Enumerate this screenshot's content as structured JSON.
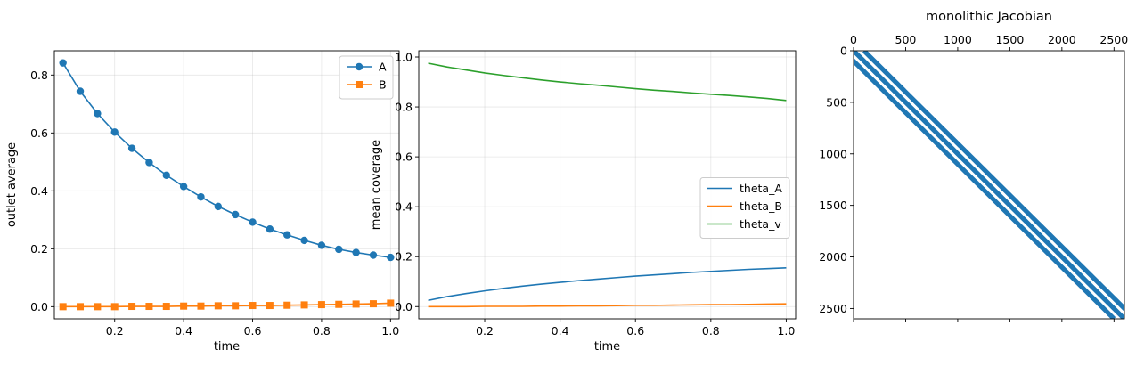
{
  "chart_data": [
    {
      "type": "line",
      "xlabel": "time",
      "ylabel": "outlet average",
      "xlim": [
        0.025,
        1.025
      ],
      "ylim": [
        -0.042,
        0.884
      ],
      "xticks": [
        0.2,
        0.4,
        0.6,
        0.8,
        1.0
      ],
      "xtick_labels": [
        "0.2",
        "0.4",
        "0.6",
        "0.8",
        "1.0"
      ],
      "yticks": [
        0.0,
        0.2,
        0.4,
        0.6,
        0.8
      ],
      "ytick_labels": [
        "0.0",
        "0.2",
        "0.4",
        "0.6",
        "0.8"
      ],
      "grid": true,
      "legend": "top-right",
      "x": [
        0.05,
        0.1,
        0.15,
        0.2,
        0.25,
        0.3,
        0.35,
        0.4,
        0.45,
        0.5,
        0.55,
        0.6,
        0.65,
        0.7,
        0.75,
        0.8,
        0.85,
        0.9,
        0.95,
        1.0
      ],
      "series": [
        {
          "name": "A",
          "color": "#1f77b4",
          "marker": "circle",
          "values": [
            0.842,
            0.744,
            0.667,
            0.603,
            0.547,
            0.498,
            0.454,
            0.415,
            0.379,
            0.346,
            0.318,
            0.292,
            0.268,
            0.248,
            0.229,
            0.212,
            0.198,
            0.187,
            0.178,
            0.17
          ]
        },
        {
          "name": "B",
          "color": "#ff7f0e",
          "marker": "square",
          "values": [
            0.0,
            0.0,
            0.0,
            0.0,
            0.001,
            0.001,
            0.001,
            0.002,
            0.002,
            0.003,
            0.003,
            0.004,
            0.004,
            0.005,
            0.006,
            0.007,
            0.008,
            0.009,
            0.01,
            0.012
          ]
        }
      ]
    },
    {
      "type": "line",
      "xlabel": "time",
      "ylabel": "mean coverage",
      "xlim": [
        0.025,
        1.025
      ],
      "ylim": [
        -0.049,
        1.025
      ],
      "xticks": [
        0.2,
        0.4,
        0.6,
        0.8,
        1.0
      ],
      "xtick_labels": [
        "0.2",
        "0.4",
        "0.6",
        "0.8",
        "1.0"
      ],
      "yticks": [
        0.0,
        0.2,
        0.4,
        0.6,
        0.8,
        1.0
      ],
      "ytick_labels": [
        "0.0",
        "0.2",
        "0.4",
        "0.6",
        "0.8",
        "1.0"
      ],
      "grid": true,
      "legend": "center-right",
      "x": [
        0.05,
        0.1,
        0.15,
        0.2,
        0.25,
        0.3,
        0.35,
        0.4,
        0.45,
        0.5,
        0.55,
        0.6,
        0.65,
        0.7,
        0.75,
        0.8,
        0.85,
        0.9,
        0.95,
        1.0
      ],
      "series": [
        {
          "name": "theta_A",
          "color": "#1f77b4",
          "values": [
            0.025,
            0.04,
            0.052,
            0.063,
            0.073,
            0.082,
            0.09,
            0.097,
            0.104,
            0.11,
            0.116,
            0.122,
            0.127,
            0.132,
            0.137,
            0.141,
            0.145,
            0.149,
            0.152,
            0.155
          ]
        },
        {
          "name": "theta_B",
          "color": "#ff7f0e",
          "values": [
            0.0,
            0.0,
            0.0,
            0.001,
            0.001,
            0.001,
            0.002,
            0.002,
            0.003,
            0.003,
            0.004,
            0.005,
            0.005,
            0.006,
            0.007,
            0.008,
            0.008,
            0.009,
            0.01,
            0.011
          ]
        },
        {
          "name": "theta_v",
          "color": "#2ca02c",
          "values": [
            0.975,
            0.96,
            0.948,
            0.936,
            0.926,
            0.917,
            0.908,
            0.9,
            0.893,
            0.887,
            0.88,
            0.873,
            0.867,
            0.862,
            0.856,
            0.851,
            0.846,
            0.84,
            0.834,
            0.826
          ]
        }
      ]
    },
    {
      "type": "heatmap",
      "title": "monolithic Jacobian",
      "xlim": [
        0,
        2600
      ],
      "ylim": [
        2600,
        0
      ],
      "xticks": [
        0,
        500,
        1000,
        1500,
        2000,
        2500
      ],
      "xtick_labels": [
        "0",
        "500",
        "1000",
        "1500",
        "2000",
        "2500"
      ],
      "yticks": [
        0,
        500,
        1000,
        1500,
        2000,
        2500
      ],
      "ytick_labels": [
        "0",
        "500",
        "1000",
        "1500",
        "2000",
        "2500"
      ],
      "bottom_ticks": [
        0,
        500,
        1000,
        1500,
        2000,
        2500
      ],
      "grid": false,
      "color": "#1f77b4",
      "nonzero_diagonal_offsets": [
        -100,
        0,
        100
      ]
    }
  ]
}
